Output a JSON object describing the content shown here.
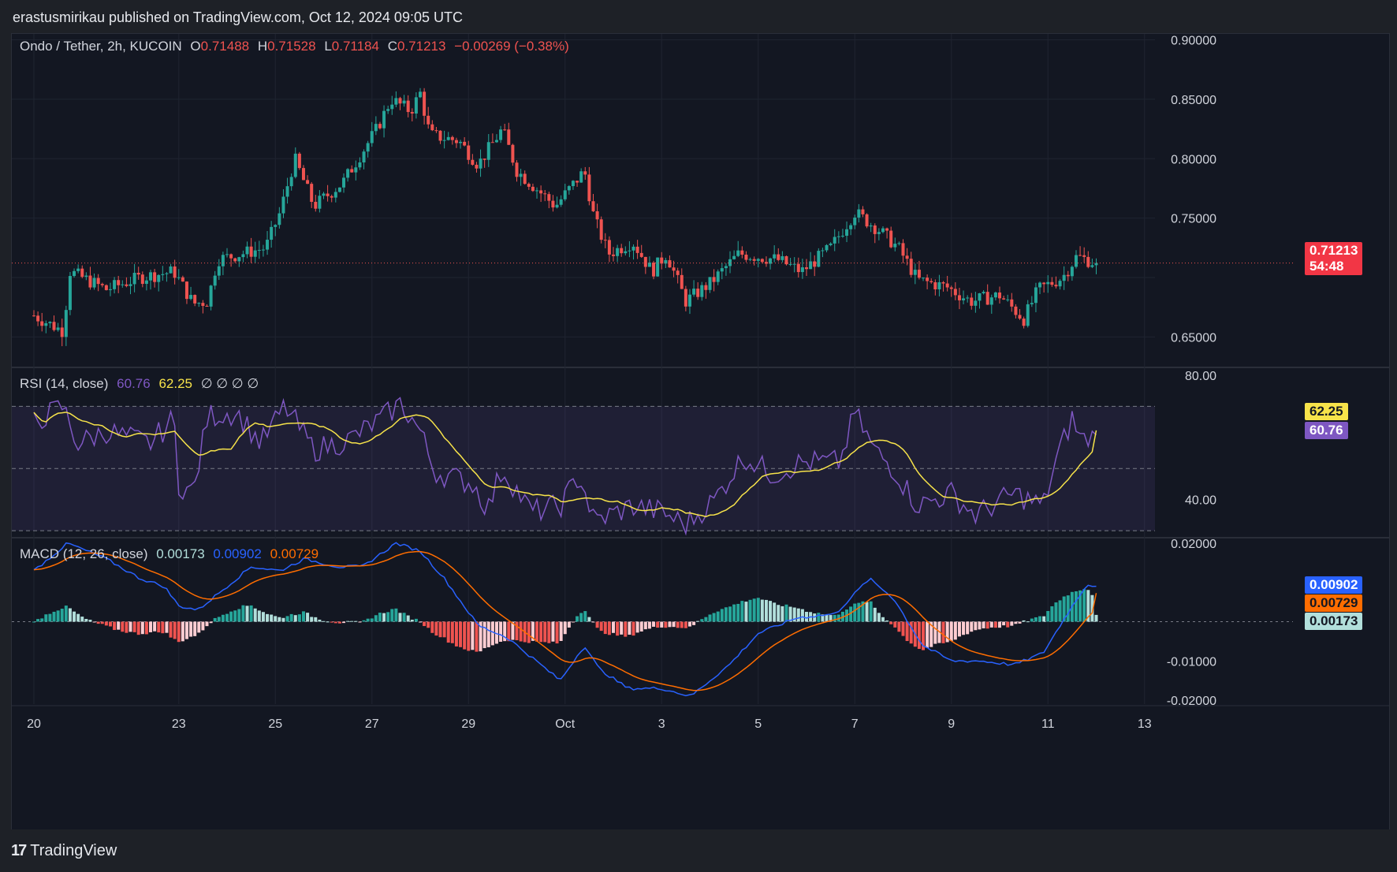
{
  "header": {
    "publisher_line": "erastusmirikau published on TradingView.com, Oct 12, 2024 09:05 UTC"
  },
  "brand": {
    "logo_mark": "17",
    "logo_text": "TradingView"
  },
  "colors": {
    "up": "#26a69a",
    "down": "#ef5350",
    "rsi": "#7e57c2",
    "rsi_ma": "#f7e34a",
    "macd": "#2962ff",
    "signal": "#ff6d00",
    "hist_up_strong": "#26a69a",
    "hist_up_weak": "#b2dfdb",
    "hist_down_strong": "#ef5350",
    "hist_down_weak": "#ffcdd2"
  },
  "main_legend": {
    "symbol": "Ondo / Tether, 2h, KUCOIN",
    "open_label": "O",
    "open": "0.71488",
    "high_label": "H",
    "high": "0.71528",
    "low_label": "L",
    "low": "0.71184",
    "close_label": "C",
    "close": "0.71213",
    "change": "−0.00269 (−0.38%)"
  },
  "price_tag": {
    "price": "0.71213",
    "countdown": "54:48"
  },
  "rsi_legend": {
    "label": "RSI (14, close)",
    "value": "60.76",
    "ma_value": "62.25",
    "extras": "∅ ∅ ∅ ∅"
  },
  "macd_legend": {
    "label": "MACD (12, 26, close)",
    "hist": "0.00173",
    "macd": "0.00902",
    "signal": "0.00729"
  },
  "chart_data": [
    {
      "type": "candlestick",
      "title": "Ondo / Tether, 2h, KUCOIN",
      "ylim": [
        0.625,
        0.905
      ],
      "y_ticks": [
        "0.90000",
        "0.85000",
        "0.80000",
        "0.75000",
        "0.65000"
      ],
      "x_ticks": [
        "20",
        "23",
        "25",
        "27",
        "29",
        "Oct",
        "3",
        "5",
        "7",
        "9",
        "11",
        "13"
      ],
      "x_range": [
        "Sep 20",
        "Oct 13"
      ],
      "last_price": 0.71213,
      "close_anchors": [
        {
          "d": 0.0,
          "c": 0.668
        },
        {
          "d": 0.6,
          "c": 0.655
        },
        {
          "d": 0.75,
          "c": 0.705
        },
        {
          "d": 1.5,
          "c": 0.69
        },
        {
          "d": 2.2,
          "c": 0.7
        },
        {
          "d": 2.9,
          "c": 0.705
        },
        {
          "d": 3.3,
          "c": 0.678
        },
        {
          "d": 3.6,
          "c": 0.68
        },
        {
          "d": 3.8,
          "c": 0.715
        },
        {
          "d": 4.8,
          "c": 0.725
        },
        {
          "d": 5.1,
          "c": 0.755
        },
        {
          "d": 5.4,
          "c": 0.8
        },
        {
          "d": 5.8,
          "c": 0.76
        },
        {
          "d": 6.4,
          "c": 0.78
        },
        {
          "d": 7.1,
          "c": 0.825
        },
        {
          "d": 7.4,
          "c": 0.85
        },
        {
          "d": 7.8,
          "c": 0.84
        },
        {
          "d": 8.0,
          "c": 0.855
        },
        {
          "d": 8.2,
          "c": 0.82
        },
        {
          "d": 8.8,
          "c": 0.815
        },
        {
          "d": 9.2,
          "c": 0.795
        },
        {
          "d": 9.7,
          "c": 0.825
        },
        {
          "d": 10.0,
          "c": 0.79
        },
        {
          "d": 10.8,
          "c": 0.76
        },
        {
          "d": 11.4,
          "c": 0.79
        },
        {
          "d": 11.6,
          "c": 0.75
        },
        {
          "d": 11.9,
          "c": 0.72
        },
        {
          "d": 12.4,
          "c": 0.73
        },
        {
          "d": 12.8,
          "c": 0.705
        },
        {
          "d": 13.1,
          "c": 0.72
        },
        {
          "d": 13.5,
          "c": 0.68
        },
        {
          "d": 14.0,
          "c": 0.695
        },
        {
          "d": 14.6,
          "c": 0.72
        },
        {
          "d": 15.4,
          "c": 0.715
        },
        {
          "d": 15.9,
          "c": 0.705
        },
        {
          "d": 16.5,
          "c": 0.725
        },
        {
          "d": 17.0,
          "c": 0.755
        },
        {
          "d": 17.5,
          "c": 0.74
        },
        {
          "d": 17.9,
          "c": 0.725
        },
        {
          "d": 18.3,
          "c": 0.698
        },
        {
          "d": 18.9,
          "c": 0.692
        },
        {
          "d": 19.4,
          "c": 0.68
        },
        {
          "d": 20.0,
          "c": 0.685
        },
        {
          "d": 20.5,
          "c": 0.665
        },
        {
          "d": 20.8,
          "c": 0.69
        },
        {
          "d": 21.3,
          "c": 0.7
        },
        {
          "d": 21.6,
          "c": 0.718
        },
        {
          "d": 22.0,
          "c": 0.712
        }
      ]
    },
    {
      "type": "line",
      "title": "RSI (14, close)",
      "ylim": [
        28,
        82
      ],
      "y_ticks": [
        "80.00",
        "40.00"
      ],
      "bands": {
        "upper": 70,
        "middle": 50,
        "lower": 30
      },
      "series": [
        {
          "name": "RSI",
          "last": 60.76
        },
        {
          "name": "RSI-based MA",
          "last": 62.25
        }
      ],
      "rsi_anchors": [
        {
          "d": 0.0,
          "v": 65
        },
        {
          "d": 0.6,
          "v": 70
        },
        {
          "d": 0.9,
          "v": 58
        },
        {
          "d": 1.5,
          "v": 62
        },
        {
          "d": 2.4,
          "v": 58
        },
        {
          "d": 2.9,
          "v": 66
        },
        {
          "d": 3.0,
          "v": 45
        },
        {
          "d": 3.3,
          "v": 42
        },
        {
          "d": 3.6,
          "v": 67
        },
        {
          "d": 4.2,
          "v": 68
        },
        {
          "d": 4.7,
          "v": 58
        },
        {
          "d": 5.2,
          "v": 70
        },
        {
          "d": 5.8,
          "v": 56
        },
        {
          "d": 6.5,
          "v": 59
        },
        {
          "d": 7.2,
          "v": 66
        },
        {
          "d": 7.6,
          "v": 71
        },
        {
          "d": 8.0,
          "v": 62
        },
        {
          "d": 8.3,
          "v": 49
        },
        {
          "d": 9.1,
          "v": 45
        },
        {
          "d": 9.4,
          "v": 37
        },
        {
          "d": 9.7,
          "v": 50
        },
        {
          "d": 10.3,
          "v": 36
        },
        {
          "d": 10.9,
          "v": 38
        },
        {
          "d": 11.3,
          "v": 48
        },
        {
          "d": 11.6,
          "v": 33
        },
        {
          "d": 12.4,
          "v": 38
        },
        {
          "d": 13.0,
          "v": 36
        },
        {
          "d": 13.5,
          "v": 32
        },
        {
          "d": 14.1,
          "v": 40
        },
        {
          "d": 14.7,
          "v": 54
        },
        {
          "d": 15.3,
          "v": 48
        },
        {
          "d": 15.9,
          "v": 52
        },
        {
          "d": 16.7,
          "v": 52
        },
        {
          "d": 17.0,
          "v": 68
        },
        {
          "d": 17.4,
          "v": 56
        },
        {
          "d": 17.8,
          "v": 50
        },
        {
          "d": 18.3,
          "v": 38
        },
        {
          "d": 19.0,
          "v": 42
        },
        {
          "d": 19.5,
          "v": 35
        },
        {
          "d": 20.3,
          "v": 42
        },
        {
          "d": 20.9,
          "v": 38
        },
        {
          "d": 21.2,
          "v": 54
        },
        {
          "d": 21.5,
          "v": 66
        },
        {
          "d": 21.7,
          "v": 59
        },
        {
          "d": 22.0,
          "v": 60.76
        }
      ]
    },
    {
      "type": "line",
      "title": "MACD (12, 26, close)",
      "ylim": [
        -0.021,
        0.021
      ],
      "y_ticks": [
        "0.02000",
        "-0.01000",
        "-0.02000"
      ],
      "series": [
        {
          "name": "MACD",
          "last": 0.00902
        },
        {
          "name": "Signal",
          "last": 0.00729
        },
        {
          "name": "Histogram",
          "last": 0.00173
        }
      ],
      "macd_anchors": [
        {
          "d": 0.0,
          "v": 0.013
        },
        {
          "d": 0.7,
          "v": 0.02
        },
        {
          "d": 1.5,
          "v": 0.016
        },
        {
          "d": 2.2,
          "v": 0.011
        },
        {
          "d": 2.7,
          "v": 0.009
        },
        {
          "d": 3.0,
          "v": 0.004
        },
        {
          "d": 3.4,
          "v": 0.003
        },
        {
          "d": 3.9,
          "v": 0.008
        },
        {
          "d": 4.5,
          "v": 0.014
        },
        {
          "d": 5.1,
          "v": 0.013
        },
        {
          "d": 5.6,
          "v": 0.016
        },
        {
          "d": 6.3,
          "v": 0.014
        },
        {
          "d": 6.8,
          "v": 0.014
        },
        {
          "d": 7.5,
          "v": 0.02
        },
        {
          "d": 8.0,
          "v": 0.018
        },
        {
          "d": 8.5,
          "v": 0.011
        },
        {
          "d": 9.2,
          "v": -0.001
        },
        {
          "d": 9.8,
          "v": -0.004
        },
        {
          "d": 10.3,
          "v": -0.009
        },
        {
          "d": 10.9,
          "v": -0.015
        },
        {
          "d": 11.4,
          "v": -0.006
        },
        {
          "d": 11.7,
          "v": -0.012
        },
        {
          "d": 12.3,
          "v": -0.017
        },
        {
          "d": 13.0,
          "v": -0.017
        },
        {
          "d": 13.6,
          "v": -0.019
        },
        {
          "d": 14.4,
          "v": -0.011
        },
        {
          "d": 15.0,
          "v": -0.003
        },
        {
          "d": 15.8,
          "v": 0.001
        },
        {
          "d": 16.6,
          "v": 0.002
        },
        {
          "d": 17.3,
          "v": 0.011
        },
        {
          "d": 17.8,
          "v": 0.006
        },
        {
          "d": 18.4,
          "v": -0.006
        },
        {
          "d": 19.0,
          "v": -0.01
        },
        {
          "d": 19.6,
          "v": -0.01
        },
        {
          "d": 20.3,
          "v": -0.011
        },
        {
          "d": 20.9,
          "v": -0.008
        },
        {
          "d": 21.4,
          "v": 0.002
        },
        {
          "d": 21.8,
          "v": 0.0095
        },
        {
          "d": 22.0,
          "v": 0.00902
        }
      ]
    }
  ]
}
